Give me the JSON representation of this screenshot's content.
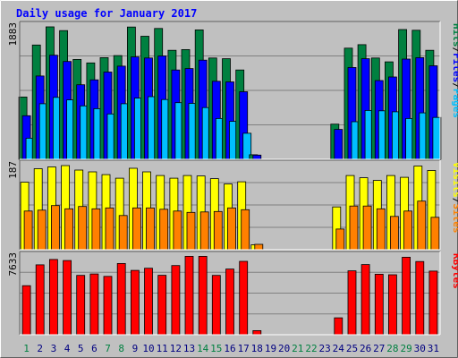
{
  "chart_data": {
    "type": "bar",
    "title": "Daily usage for January 2017",
    "categories": [
      "1",
      "2",
      "3",
      "4",
      "5",
      "6",
      "7",
      "8",
      "9",
      "10",
      "11",
      "12",
      "13",
      "14",
      "15",
      "16",
      "17",
      "18",
      "19",
      "20",
      "21",
      "22",
      "23",
      "24",
      "25",
      "26",
      "27",
      "28",
      "29",
      "30",
      "31"
    ],
    "weekend_days": [
      "1",
      "7",
      "8",
      "14",
      "15",
      "21",
      "22",
      "28",
      "29"
    ],
    "panels": [
      {
        "name": "hits-panel",
        "ymax": 1883,
        "ymax_label": "1883",
        "series": [
          {
            "name": "Hits",
            "color": "#008040",
            "values": [
              885,
              1625,
              1883,
              1830,
              1420,
              1370,
              1445,
              1475,
              1880,
              1750,
              1860,
              1550,
              1560,
              1840,
              1440,
              1430,
              1270,
              65,
              0,
              0,
              0,
              0,
              0,
              500,
              1580,
              1630,
              1440,
              1385,
              1845,
              1835,
              1550
            ]
          },
          {
            "name": "Files",
            "color": "#0000ff",
            "values": [
              620,
              1185,
              1480,
              1390,
              1060,
              1130,
              1240,
              1325,
              1455,
              1440,
              1470,
              1270,
              1290,
              1410,
              1110,
              1100,
              960,
              60,
              0,
              0,
              0,
              0,
              0,
              425,
              1305,
              1430,
              1120,
              1170,
              1425,
              1445,
              1330
            ]
          },
          {
            "name": "Pages",
            "color": "#00bfff",
            "values": [
              300,
              790,
              880,
              845,
              760,
              720,
              645,
              790,
              870,
              890,
              850,
              805,
              795,
              735,
              580,
              540,
              370,
              0,
              0,
              0,
              0,
              0,
              0,
              0,
              535,
              695,
              690,
              675,
              580,
              660,
              595
            ]
          }
        ],
        "right_label": [
          {
            "text": "Hits",
            "color": "#008040"
          },
          {
            "text": "/",
            "color": "#000000"
          },
          {
            "text": "Files",
            "color": "#0000ff"
          },
          {
            "text": "/",
            "color": "#000000"
          },
          {
            "text": "Pages",
            "color": "#00bfff"
          }
        ]
      },
      {
        "name": "visits-panel",
        "ymax": 187,
        "ymax_label": "187",
        "series": [
          {
            "name": "Visits",
            "color": "#ffff00",
            "values": [
              150,
              180,
              184,
              187,
              177,
              173,
              167,
              159,
              181,
              173,
              165,
              159,
              165,
              164,
              158,
              146,
              151,
              11,
              0,
              0,
              0,
              0,
              0,
              95,
              165,
              160,
              154,
              165,
              161,
              186,
              176
            ]
          },
          {
            "name": "Sites",
            "color": "#ff8000",
            "values": [
              86,
              88,
              98,
              91,
              96,
              91,
              93,
              76,
              93,
              93,
              90,
              86,
              83,
              84,
              85,
              93,
              89,
              12,
              0,
              0,
              0,
              0,
              0,
              46,
              97,
              97,
              91,
              74,
              86,
              108,
              72
            ]
          }
        ],
        "right_label": [
          {
            "text": "Visits",
            "color": "#ffff00"
          },
          {
            "text": "/",
            "color": "#000000"
          },
          {
            "text": "Sites",
            "color": "#ff8000"
          }
        ]
      },
      {
        "name": "kbytes-panel",
        "ymax": 7633,
        "ymax_label": "7633",
        "series": [
          {
            "name": "KBytes",
            "color": "#ff0000",
            "values": [
              4810,
              6855,
              7380,
              7270,
              5820,
              5960,
              5720,
              6980,
              6310,
              6520,
              5830,
              6780,
              7690,
              7690,
              5820,
              6440,
              7190,
              400,
              0,
              0,
              0,
              0,
              0,
              1660,
              6260,
              6880,
              5930,
              5880,
              7600,
              7180,
              6240
            ]
          }
        ],
        "right_label": [
          {
            "text": "KBytes",
            "color": "#ff0000"
          }
        ]
      }
    ]
  }
}
